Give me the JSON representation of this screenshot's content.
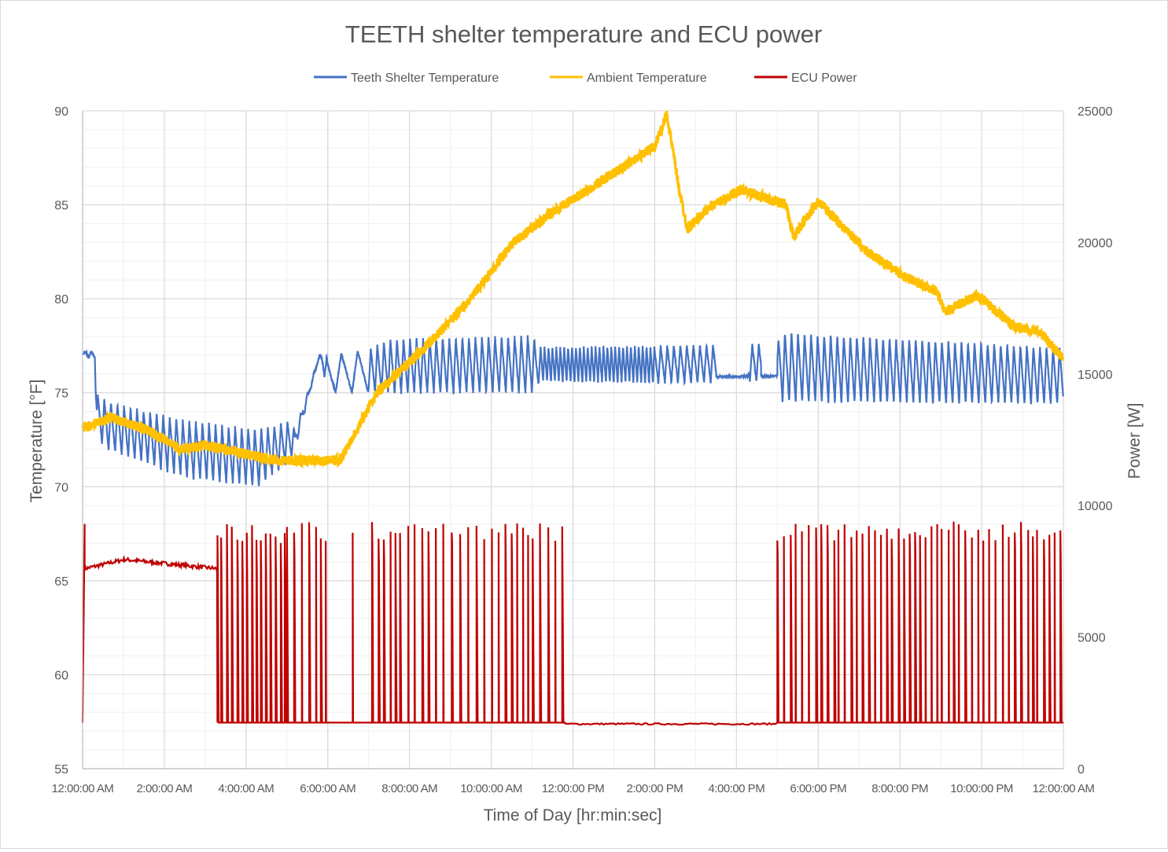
{
  "chart_data": {
    "type": "line",
    "title": "TEETH shelter temperature and ECU power",
    "xlabel": "Time of Day [hr:min:sec]",
    "ylabel": "Temperature [°F]",
    "y2label": "Power [W]",
    "xlim_hours": [
      0,
      24
    ],
    "ylim": [
      55,
      90
    ],
    "y2lim": [
      0,
      25000
    ],
    "grid": true,
    "legend_position": "top",
    "x_ticks": [
      "12:00:00 AM",
      "2:00:00 AM",
      "4:00:00 AM",
      "6:00:00 AM",
      "8:00:00 AM",
      "10:00:00 AM",
      "12:00:00 PM",
      "2:00:00 PM",
      "4:00:00 PM",
      "6:00:00 PM",
      "8:00:00 PM",
      "10:00:00 PM",
      "12:00:00 AM"
    ],
    "y_ticks": [
      "55",
      "60",
      "65",
      "70",
      "75",
      "80",
      "85",
      "90"
    ],
    "y2_ticks": [
      "0",
      "5000",
      "10000",
      "15000",
      "20000",
      "25000"
    ],
    "series": [
      {
        "name": "Teeth Shelter Temperature",
        "color": "#4472C4",
        "axis": "left",
        "envelope_hours_low_high": [
          [
            0,
            77,
            77.2
          ],
          [
            0.3,
            76.8,
            77.2
          ],
          [
            0.35,
            72.5,
            75
          ],
          [
            0.6,
            72,
            74.5
          ],
          [
            2.5,
            70.5,
            73.5
          ],
          [
            4.3,
            70,
            73
          ],
          [
            5.1,
            71.5,
            73.5
          ],
          [
            5.2,
            72,
            73
          ],
          [
            5.8,
            77,
            77
          ],
          [
            6.0,
            75,
            77
          ],
          [
            7.0,
            75,
            77.3
          ],
          [
            7.5,
            75,
            77.8
          ],
          [
            11,
            75,
            78
          ],
          [
            11.2,
            75.6,
            77.4
          ],
          [
            14,
            75.5,
            77.5
          ],
          [
            17,
            75.6,
            77.6
          ],
          [
            17.1,
            74.5,
            78.2
          ],
          [
            24,
            74.4,
            77.4
          ]
        ],
        "cycle_period_hours": 0.16
      },
      {
        "name": "Ambient Temperature",
        "color": "#FFC000",
        "axis": "left",
        "points_hours_degF": [
          [
            0,
            73.1
          ],
          [
            0.7,
            73.7
          ],
          [
            1.6,
            73.0
          ],
          [
            2.4,
            72.0
          ],
          [
            3,
            72.2
          ],
          [
            4.7,
            71.4
          ],
          [
            6.3,
            71.4
          ],
          [
            7.2,
            75
          ],
          [
            8.6,
            77.9
          ],
          [
            9.5,
            80
          ],
          [
            10.5,
            82.9
          ],
          [
            11.5,
            84.6
          ],
          [
            12.8,
            86.4
          ],
          [
            14,
            88.1
          ],
          [
            14.3,
            89.8
          ],
          [
            14.6,
            85.8
          ],
          [
            14.8,
            83.7
          ],
          [
            15.3,
            84.8
          ],
          [
            16.1,
            85.8
          ],
          [
            17.2,
            85
          ],
          [
            17.4,
            83.3
          ],
          [
            18,
            85.2
          ],
          [
            19.2,
            82.5
          ],
          [
            20.1,
            81.2
          ],
          [
            20.9,
            80.4
          ],
          [
            21.1,
            79.3
          ],
          [
            21.9,
            80.2
          ],
          [
            22.8,
            78.5
          ],
          [
            23.4,
            78.3
          ],
          [
            24,
            76.8
          ]
        ]
      },
      {
        "name": "ECU Power",
        "color": "#C00000",
        "axis": "right",
        "baseline_w": 1750,
        "segments": [
          {
            "start": 0.05,
            "end": 3.3,
            "mode": "steady",
            "level_start_w": 7600,
            "level_peak_w": 7950,
            "level_end_w": 7600
          },
          {
            "start": 3.3,
            "end": 5.0,
            "mode": "cycling",
            "period_hours": 0.11,
            "peak_w": 9200,
            "hold_w": 7500
          },
          {
            "start": 5.0,
            "end": 11.8,
            "mode": "cycling",
            "period_hours": 0.16,
            "peak_w": 9300,
            "hold_w": 1750,
            "gap": [
              6.0,
              7.1
            ]
          },
          {
            "start": 11.8,
            "end": 17.0,
            "mode": "off",
            "level_w": 1700
          },
          {
            "start": 17.0,
            "end": 24,
            "mode": "cycling",
            "period_hours": 0.14,
            "peak_w": 9300,
            "hold_w": 1750
          }
        ]
      }
    ]
  }
}
